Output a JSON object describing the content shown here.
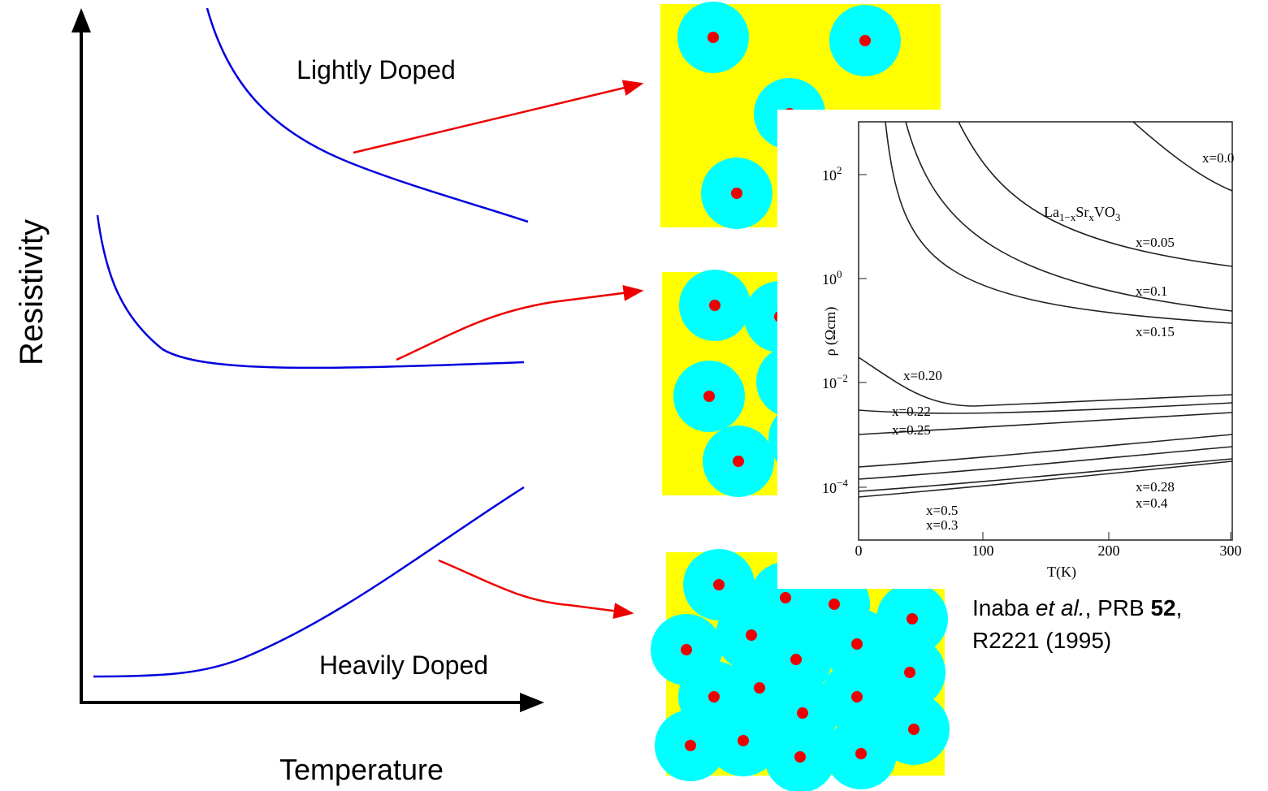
{
  "schematic": {
    "y_axis_label": "Resistivity",
    "x_axis_label": "Temperature",
    "top_label": "Lightly Doped",
    "bottom_label": "Heavily Doped"
  },
  "inset": {
    "compound": [
      "La",
      "1−x",
      "Sr",
      "x",
      "VO",
      "3"
    ],
    "x_axis_label": "T(K)",
    "y_axis_label": "ρ (Ωcm)",
    "xticks": [
      "0",
      "100",
      "200",
      "300"
    ],
    "yticks": [
      {
        "base": "10",
        "exp": "2"
      },
      {
        "base": "10",
        "exp": "0"
      },
      {
        "base": "10",
        "exp": "−2"
      },
      {
        "base": "10",
        "exp": "−4"
      }
    ],
    "curve_labels": [
      "x=0.0",
      "x=0.05",
      "x=0.1",
      "x=0.15",
      "x=0.20",
      "x=0.22",
      "x=0.25",
      "x=0.28",
      "x=0.4",
      "x=0.5",
      "x=0.3"
    ]
  },
  "citation": {
    "line1": [
      "Inaba ",
      "et al.",
      ", PRB ",
      "52",
      ","
    ],
    "line2": "R2221 (1995)"
  }
}
